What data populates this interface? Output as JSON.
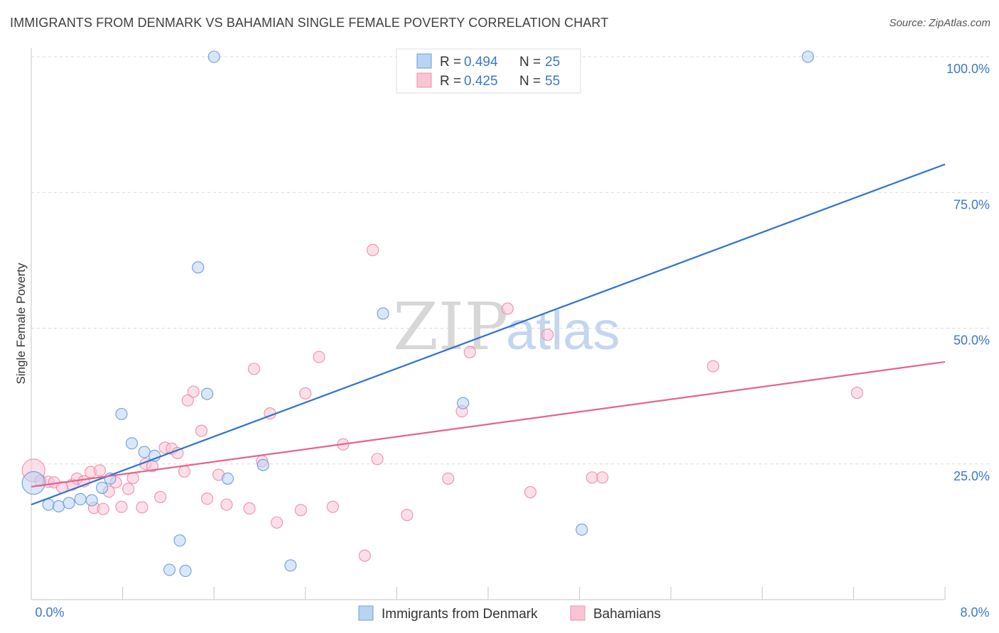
{
  "header": {
    "title": "IMMIGRANTS FROM DENMARK VS BAHAMIAN SINGLE FEMALE POVERTY CORRELATION CHART",
    "source": "Source: ZipAtlas.com"
  },
  "watermark": {
    "zip": "ZIP",
    "atlas": "atlas"
  },
  "colors": {
    "blue_fill": "#b9d3f3",
    "blue_stroke": "#6a9ee0",
    "blue_line": "#2e72d2",
    "pink_fill": "#f9c5d4",
    "pink_stroke": "#ee8fad",
    "pink_line": "#e4638f",
    "axis_text": "#3b78c6",
    "grid": "#d9d9d9"
  },
  "legend": {
    "rows": [
      {
        "r_label": "R = ",
        "r_value": "0.494",
        "n_label": "N = ",
        "n_value": "25",
        "series": "blue"
      },
      {
        "r_label": "R = ",
        "r_value": "0.425",
        "n_label": "N = ",
        "n_value": "55",
        "series": "pink"
      }
    ]
  },
  "chart_data": {
    "type": "scatter",
    "title": "IMMIGRANTS FROM DENMARK VS BAHAMIAN SINGLE FEMALE POVERTY CORRELATION CHART",
    "xlabel": "",
    "ylabel": "Single Female Poverty",
    "xlim": [
      0,
      8
    ],
    "ylim": [
      0,
      100
    ],
    "x_tick_labels": [
      "0.0%",
      "8.0%"
    ],
    "y_ticks": [
      25,
      50,
      75,
      100
    ],
    "y_tick_labels": [
      "25.0%",
      "50.0%",
      "75.0%",
      "100.0%"
    ],
    "grid": true,
    "legend_position": "top-center",
    "series": [
      {
        "name": "Immigrants from Denmark",
        "color": "blue",
        "R": 0.494,
        "N": 25,
        "trend": {
          "x": [
            0,
            8
          ],
          "y": [
            17.5,
            80.2
          ]
        },
        "points": [
          [
            0.02,
            21.5
          ],
          [
            0.15,
            17.5
          ],
          [
            0.24,
            17.2
          ],
          [
            0.33,
            17.8
          ],
          [
            0.43,
            18.5
          ],
          [
            0.53,
            18.3
          ],
          [
            0.62,
            20.6
          ],
          [
            0.69,
            22.3
          ],
          [
            0.79,
            34.2
          ],
          [
            0.88,
            28.8
          ],
          [
            0.99,
            27.2
          ],
          [
            1.08,
            26.5
          ],
          [
            1.21,
            5.5
          ],
          [
            1.3,
            10.9
          ],
          [
            1.35,
            5.3
          ],
          [
            1.46,
            61.2
          ],
          [
            1.54,
            37.9
          ],
          [
            1.6,
            100.0
          ],
          [
            1.72,
            22.3
          ],
          [
            2.03,
            24.8
          ],
          [
            2.27,
            6.3
          ],
          [
            3.08,
            52.7
          ],
          [
            3.78,
            36.2
          ],
          [
            4.82,
            12.9
          ],
          [
            6.8,
            100.0
          ]
        ]
      },
      {
        "name": "Bahamians",
        "color": "pink",
        "R": 0.425,
        "N": 55,
        "trend": {
          "x": [
            0,
            8
          ],
          "y": [
            20.8,
            43.8
          ]
        },
        "points": [
          [
            0.02,
            23.8
          ],
          [
            0.08,
            21.9
          ],
          [
            0.15,
            21.7
          ],
          [
            0.2,
            21.6
          ],
          [
            0.27,
            20.7
          ],
          [
            0.36,
            21.2
          ],
          [
            0.4,
            22.3
          ],
          [
            0.46,
            21.8
          ],
          [
            0.52,
            23.5
          ],
          [
            0.55,
            16.9
          ],
          [
            0.6,
            23.8
          ],
          [
            0.63,
            16.7
          ],
          [
            0.68,
            19.9
          ],
          [
            0.74,
            21.6
          ],
          [
            0.79,
            17.1
          ],
          [
            0.85,
            20.4
          ],
          [
            0.89,
            22.4
          ],
          [
            0.97,
            17.0
          ],
          [
            1.0,
            25.0
          ],
          [
            1.06,
            24.6
          ],
          [
            1.13,
            18.9
          ],
          [
            1.17,
            28.0
          ],
          [
            1.23,
            27.8
          ],
          [
            1.28,
            27.0
          ],
          [
            1.34,
            23.6
          ],
          [
            1.37,
            36.7
          ],
          [
            1.42,
            38.3
          ],
          [
            1.49,
            31.1
          ],
          [
            1.54,
            18.6
          ],
          [
            1.64,
            23.0
          ],
          [
            1.71,
            17.5
          ],
          [
            1.91,
            16.8
          ],
          [
            1.95,
            42.5
          ],
          [
            2.02,
            25.5
          ],
          [
            2.09,
            34.3
          ],
          [
            2.15,
            14.2
          ],
          [
            2.36,
            16.5
          ],
          [
            2.4,
            38.0
          ],
          [
            2.52,
            44.7
          ],
          [
            2.64,
            17.1
          ],
          [
            2.73,
            28.6
          ],
          [
            2.92,
            8.1
          ],
          [
            2.99,
            64.4
          ],
          [
            3.03,
            25.9
          ],
          [
            3.29,
            15.6
          ],
          [
            3.65,
            22.3
          ],
          [
            3.77,
            34.7
          ],
          [
            3.84,
            45.6
          ],
          [
            4.17,
            53.6
          ],
          [
            4.37,
            19.8
          ],
          [
            4.52,
            48.8
          ],
          [
            4.91,
            22.5
          ],
          [
            5.0,
            22.5
          ],
          [
            5.97,
            43.0
          ],
          [
            7.23,
            38.1
          ]
        ]
      }
    ]
  }
}
